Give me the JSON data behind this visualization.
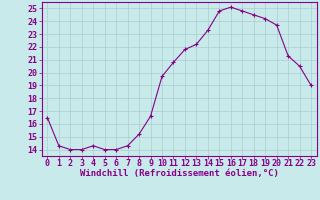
{
  "x": [
    0,
    1,
    2,
    3,
    4,
    5,
    6,
    7,
    8,
    9,
    10,
    11,
    12,
    13,
    14,
    15,
    16,
    17,
    18,
    19,
    20,
    21,
    22,
    23
  ],
  "y": [
    16.5,
    14.3,
    14.0,
    14.0,
    14.3,
    14.0,
    14.0,
    14.3,
    15.2,
    16.6,
    19.7,
    20.8,
    21.8,
    22.2,
    23.3,
    24.8,
    25.1,
    24.8,
    24.5,
    24.2,
    23.7,
    21.3,
    20.5,
    19.0
  ],
  "line_color": "#880088",
  "marker": "+",
  "marker_size": 3,
  "bg_color": "#c8eaea",
  "grid_color": "#aacccc",
  "xlabel": "Windchill (Refroidissement éolien,°C)",
  "xlabel_color": "#880088",
  "tick_color": "#880088",
  "spine_color": "#880088",
  "ylim": [
    13.5,
    25.5
  ],
  "xlim": [
    -0.5,
    23.5
  ],
  "yticks": [
    14,
    15,
    16,
    17,
    18,
    19,
    20,
    21,
    22,
    23,
    24,
    25
  ],
  "xticks": [
    0,
    1,
    2,
    3,
    4,
    5,
    6,
    7,
    8,
    9,
    10,
    11,
    12,
    13,
    14,
    15,
    16,
    17,
    18,
    19,
    20,
    21,
    22,
    23
  ],
  "xlabel_fontsize": 6.5,
  "tick_fontsize": 6,
  "line_width": 0.8,
  "marker_edge_width": 0.8
}
